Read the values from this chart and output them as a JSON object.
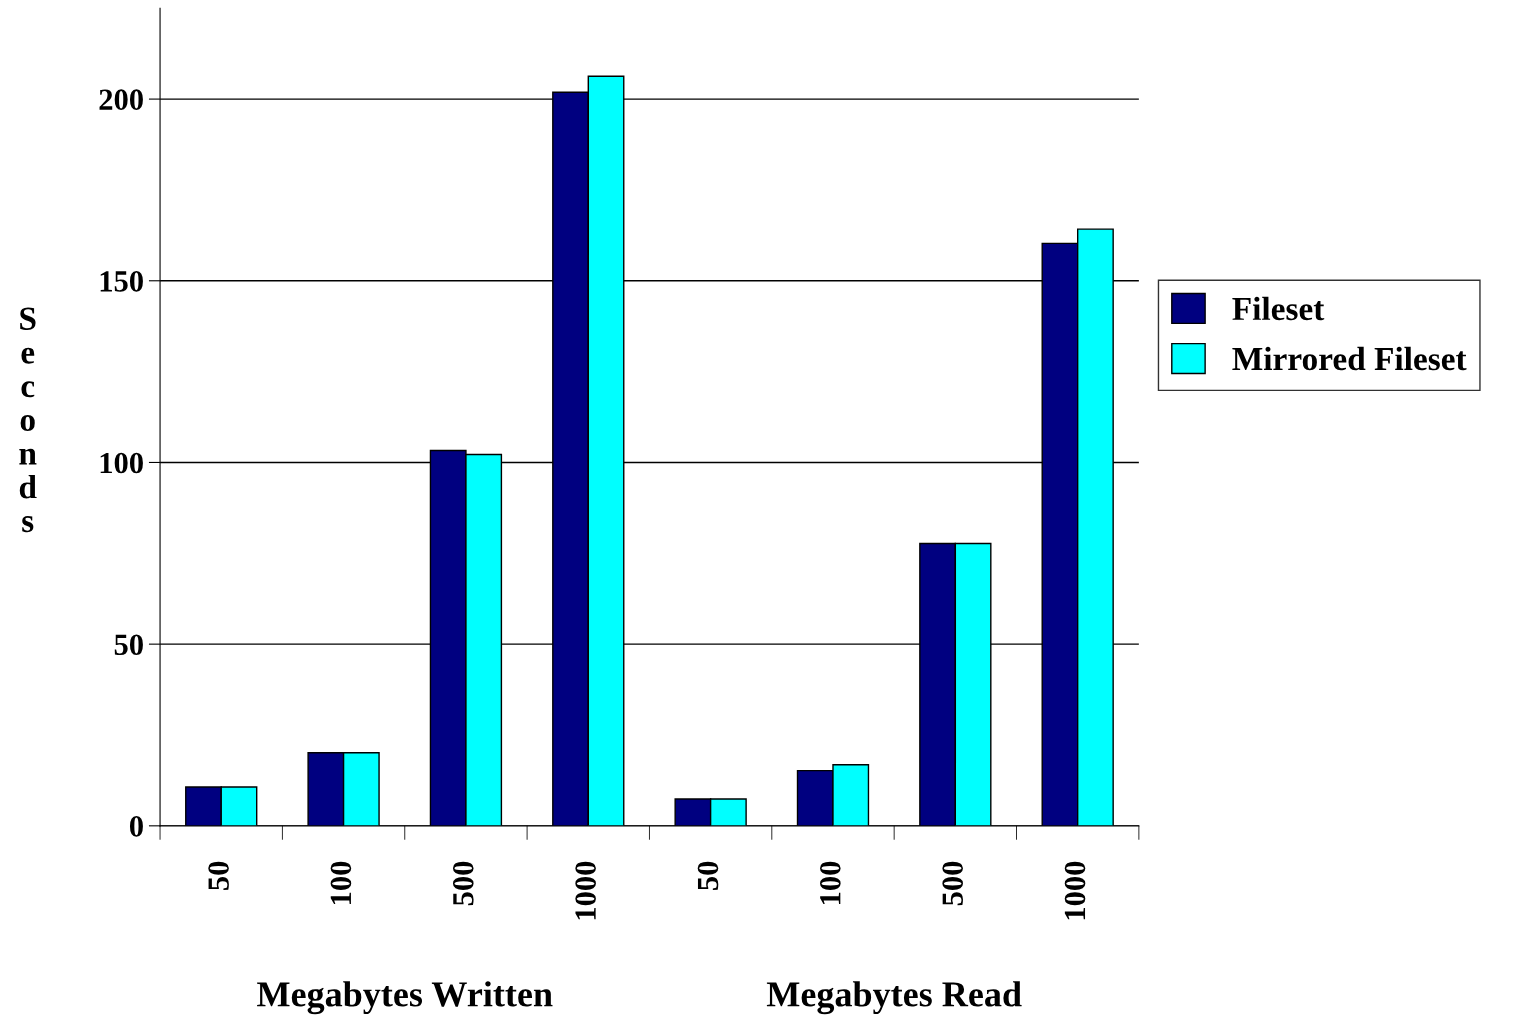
{
  "chart_data": {
    "type": "bar",
    "ylabel": "Seconds",
    "categories": [
      "50",
      "100",
      "500",
      "1000",
      "50",
      "100",
      "500",
      "1000"
    ],
    "series": [
      {
        "name": "Fileset",
        "color": "#000080",
        "values": [
          10.7,
          20.1,
          103.3,
          201.9,
          7.4,
          15.2,
          77.7,
          160.3
        ]
      },
      {
        "name": "Mirrored Fileset",
        "color": "#00ffff",
        "values": [
          10.7,
          20.1,
          102.2,
          206.3,
          7.4,
          16.8,
          77.7,
          164.2
        ]
      }
    ],
    "ylim": [
      0,
      225
    ],
    "yticks": [
      0,
      50,
      100,
      150,
      200
    ],
    "grid": "y",
    "legend": "right",
    "annotations": [
      "Megabytes Written",
      "Megabytes Read"
    ]
  }
}
